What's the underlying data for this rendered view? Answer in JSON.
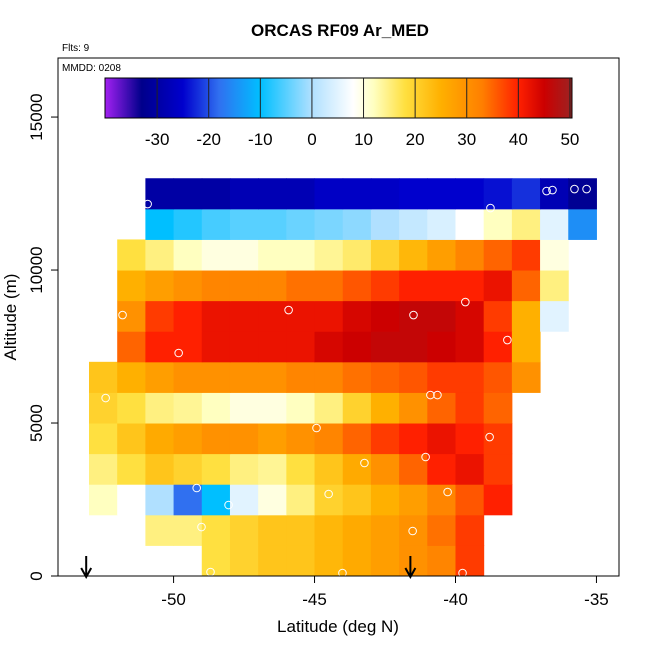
{
  "chart_data": {
    "type": "heatmap",
    "title": "ORCAS RF09 Ar_MED",
    "note_flights": "Flts: 9",
    "note_date": "MMDD: 0208",
    "x_label": "Latitude (deg N)",
    "y_label": "Altitude (m)",
    "xlim": [
      -54.1,
      -34.2
    ],
    "ylim": [
      0,
      16930
    ],
    "xticks": [
      -50,
      -45,
      -40,
      -35
    ],
    "yticks": [
      0,
      5000,
      10000,
      15000
    ],
    "x_edges": [
      -53,
      -52,
      -51,
      -50,
      -49,
      -48,
      -47,
      -46,
      -45,
      -44,
      -43,
      -42,
      -41,
      -40,
      -39,
      -38,
      -37,
      -36,
      -35
    ],
    "y_edges": [
      0,
      1000,
      2000,
      3000,
      4000,
      5000,
      6000,
      7000,
      8000,
      9000,
      10000,
      11000,
      12000,
      13000
    ],
    "values": [
      [
        null,
        null,
        null,
        null,
        18,
        20,
        22,
        22,
        24,
        26,
        28,
        30,
        32,
        38,
        null,
        null,
        null,
        null
      ],
      [
        null,
        null,
        15,
        15,
        18,
        20,
        22,
        22,
        24,
        26,
        28,
        30,
        34,
        38,
        null,
        null,
        null,
        null
      ],
      [
        12,
        8,
        0,
        -18,
        -10,
        5,
        10,
        15,
        20,
        22,
        25,
        28,
        32,
        36,
        40,
        null,
        null,
        null
      ],
      [
        15,
        18,
        22,
        20,
        18,
        15,
        14,
        18,
        22,
        26,
        30,
        35,
        40,
        42,
        38,
        null,
        null,
        null
      ],
      [
        18,
        22,
        26,
        28,
        30,
        30,
        28,
        30,
        32,
        35,
        38,
        40,
        42,
        40,
        38,
        null,
        null,
        null
      ],
      [
        20,
        18,
        15,
        14,
        12,
        10,
        10,
        12,
        15,
        20,
        25,
        30,
        35,
        38,
        35,
        null,
        null,
        null
      ],
      [
        22,
        25,
        28,
        30,
        30,
        30,
        30,
        32,
        32,
        34,
        35,
        36,
        38,
        38,
        36,
        30,
        null,
        null
      ],
      [
        null,
        35,
        40,
        40,
        42,
        42,
        42,
        42,
        44,
        45,
        46,
        46,
        45,
        44,
        40,
        25,
        null,
        null
      ],
      [
        null,
        30,
        38,
        40,
        42,
        42,
        42,
        42,
        42,
        44,
        45,
        46,
        46,
        44,
        38,
        25,
        5,
        null
      ],
      [
        null,
        25,
        28,
        30,
        32,
        32,
        32,
        34,
        34,
        36,
        38,
        40,
        40,
        40,
        42,
        35,
        15,
        null
      ],
      [
        null,
        18,
        15,
        12,
        10,
        10,
        12,
        12,
        14,
        16,
        20,
        24,
        28,
        32,
        35,
        38,
        10,
        null
      ],
      [
        null,
        null,
        -10,
        -8,
        -6,
        -5,
        -5,
        -4,
        -3,
        -2,
        0,
        2,
        4,
        8,
        12,
        15,
        5,
        -15
      ],
      [
        null,
        null,
        -30,
        -30,
        -30,
        -28,
        -28,
        -28,
        -26,
        -26,
        -26,
        -25,
        -25,
        -25,
        -24,
        -22,
        -28,
        -32
      ]
    ],
    "colorbar_lim": [
      -40.1,
      50.4
    ],
    "colorbar_ticks": [
      -30,
      -20,
      -10,
      0,
      10,
      20,
      30,
      40,
      50
    ],
    "colorscale": [
      [
        -40,
        "#a020f0"
      ],
      [
        -33,
        "#00008b"
      ],
      [
        -25,
        "#0000cd"
      ],
      [
        -18,
        "#3070f0"
      ],
      [
        -10,
        "#00bfff"
      ],
      [
        0,
        "#b0e0ff"
      ],
      [
        8,
        "#ffffff"
      ],
      [
        12,
        "#ffffc0"
      ],
      [
        18,
        "#ffe040"
      ],
      [
        25,
        "#ffb000"
      ],
      [
        33,
        "#ff7f00"
      ],
      [
        40,
        "#ff2000"
      ],
      [
        45,
        "#cc0000"
      ],
      [
        50,
        "#a02020"
      ]
    ],
    "points": {
      "x": [
        -50.92,
        -38.76,
        -36.77,
        -36.56,
        -35.78,
        -35.35,
        -51.81,
        -45.92,
        -41.49,
        -39.65,
        -38.16,
        -49.82,
        -52.41,
        -40.89,
        -40.64,
        -44.93,
        -38.79,
        -43.23,
        -41.06,
        -49.18,
        -44.5,
        -40.28,
        -48.05,
        -49.01,
        -41.52,
        -48.69,
        -44.01,
        -39.75
      ],
      "y": [
        12157,
        12026,
        12582,
        12614,
        12647,
        12647,
        8529,
        8693,
        8529,
        8954,
        7712,
        7288,
        5817,
        5915,
        5915,
        4837,
        4542,
        3693,
        3889,
        2876,
        2680,
        2745,
        2320,
        1601,
        1471,
        131,
        98,
        98
      ]
    },
    "arrows_x": [
      -53.1,
      -41.6
    ]
  }
}
